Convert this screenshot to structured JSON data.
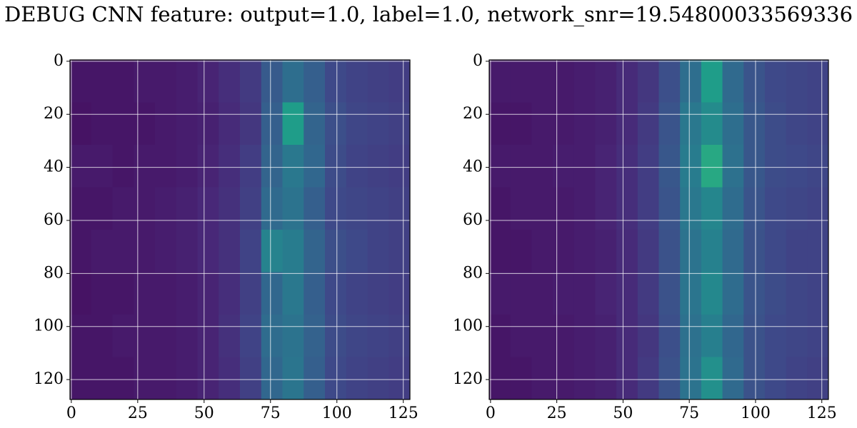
{
  "chart_data": [
    {
      "type": "heatmap",
      "title": "DEBUG CNN feature: output=1.0, label=1.0, network_snr=19.54800033569336",
      "colormap": "viridis",
      "vlim": [
        0,
        1
      ],
      "grid": true,
      "xlim": [
        -0.5,
        127.5
      ],
      "ylim": [
        127.5,
        -0.5
      ],
      "xticks": [
        0,
        25,
        50,
        75,
        100,
        125
      ],
      "yticks": [
        0,
        20,
        40,
        60,
        80,
        100,
        120
      ],
      "xbins": [
        0,
        8,
        16,
        24,
        32,
        40,
        48,
        56,
        64,
        72,
        80,
        88,
        96,
        104,
        112,
        120,
        128
      ],
      "ybins": [
        0,
        16,
        32,
        48,
        64,
        80,
        96,
        112,
        128
      ],
      "values": [
        [
          0.06,
          0.06,
          0.06,
          0.07,
          0.07,
          0.08,
          0.1,
          0.13,
          0.17,
          0.28,
          0.36,
          0.3,
          0.22,
          0.2,
          0.19,
          0.18
        ],
        [
          0.05,
          0.06,
          0.06,
          0.06,
          0.07,
          0.08,
          0.09,
          0.12,
          0.16,
          0.3,
          0.55,
          0.32,
          0.24,
          0.21,
          0.2,
          0.19
        ],
        [
          0.07,
          0.07,
          0.06,
          0.07,
          0.07,
          0.08,
          0.1,
          0.13,
          0.18,
          0.32,
          0.4,
          0.33,
          0.23,
          0.2,
          0.19,
          0.18
        ],
        [
          0.06,
          0.06,
          0.07,
          0.07,
          0.08,
          0.09,
          0.11,
          0.14,
          0.19,
          0.34,
          0.38,
          0.3,
          0.22,
          0.21,
          0.2,
          0.19
        ],
        [
          0.06,
          0.07,
          0.07,
          0.07,
          0.08,
          0.09,
          0.11,
          0.14,
          0.2,
          0.45,
          0.42,
          0.32,
          0.24,
          0.22,
          0.2,
          0.19
        ],
        [
          0.05,
          0.06,
          0.06,
          0.07,
          0.07,
          0.08,
          0.1,
          0.13,
          0.19,
          0.33,
          0.4,
          0.3,
          0.22,
          0.2,
          0.19,
          0.18
        ],
        [
          0.06,
          0.06,
          0.07,
          0.07,
          0.07,
          0.08,
          0.1,
          0.14,
          0.2,
          0.35,
          0.38,
          0.31,
          0.23,
          0.21,
          0.2,
          0.19
        ],
        [
          0.06,
          0.06,
          0.06,
          0.07,
          0.07,
          0.08,
          0.1,
          0.13,
          0.19,
          0.33,
          0.39,
          0.3,
          0.22,
          0.2,
          0.19,
          0.18
        ]
      ]
    },
    {
      "type": "heatmap",
      "colormap": "viridis",
      "vlim": [
        0,
        1
      ],
      "grid": true,
      "xlim": [
        -0.5,
        127.5
      ],
      "ylim": [
        127.5,
        -0.5
      ],
      "xticks": [
        0,
        25,
        50,
        75,
        100,
        125
      ],
      "yticks": [
        0,
        20,
        40,
        60,
        80,
        100,
        120
      ],
      "xbins": [
        0,
        8,
        16,
        24,
        32,
        40,
        48,
        56,
        64,
        72,
        80,
        88,
        96,
        104,
        112,
        120,
        128
      ],
      "ybins": [
        0,
        16,
        32,
        48,
        64,
        80,
        96,
        112,
        128
      ],
      "values": [
        [
          0.07,
          0.07,
          0.07,
          0.07,
          0.08,
          0.09,
          0.12,
          0.16,
          0.24,
          0.36,
          0.55,
          0.34,
          0.26,
          0.22,
          0.21,
          0.2
        ],
        [
          0.06,
          0.06,
          0.07,
          0.07,
          0.08,
          0.09,
          0.12,
          0.17,
          0.26,
          0.4,
          0.48,
          0.36,
          0.27,
          0.23,
          0.21,
          0.2
        ],
        [
          0.07,
          0.07,
          0.07,
          0.08,
          0.08,
          0.1,
          0.13,
          0.18,
          0.27,
          0.42,
          0.6,
          0.37,
          0.27,
          0.23,
          0.22,
          0.21
        ],
        [
          0.06,
          0.07,
          0.07,
          0.07,
          0.08,
          0.1,
          0.13,
          0.18,
          0.26,
          0.4,
          0.46,
          0.35,
          0.26,
          0.22,
          0.21,
          0.2
        ],
        [
          0.06,
          0.06,
          0.07,
          0.07,
          0.08,
          0.09,
          0.12,
          0.17,
          0.25,
          0.38,
          0.44,
          0.34,
          0.25,
          0.22,
          0.2,
          0.2
        ],
        [
          0.07,
          0.07,
          0.07,
          0.08,
          0.08,
          0.1,
          0.12,
          0.17,
          0.25,
          0.39,
          0.47,
          0.35,
          0.26,
          0.23,
          0.21,
          0.2
        ],
        [
          0.06,
          0.07,
          0.07,
          0.07,
          0.08,
          0.09,
          0.12,
          0.16,
          0.24,
          0.37,
          0.43,
          0.33,
          0.25,
          0.22,
          0.21,
          0.2
        ],
        [
          0.06,
          0.06,
          0.07,
          0.07,
          0.08,
          0.09,
          0.12,
          0.17,
          0.25,
          0.38,
          0.5,
          0.34,
          0.25,
          0.22,
          0.2,
          0.19
        ]
      ]
    }
  ]
}
